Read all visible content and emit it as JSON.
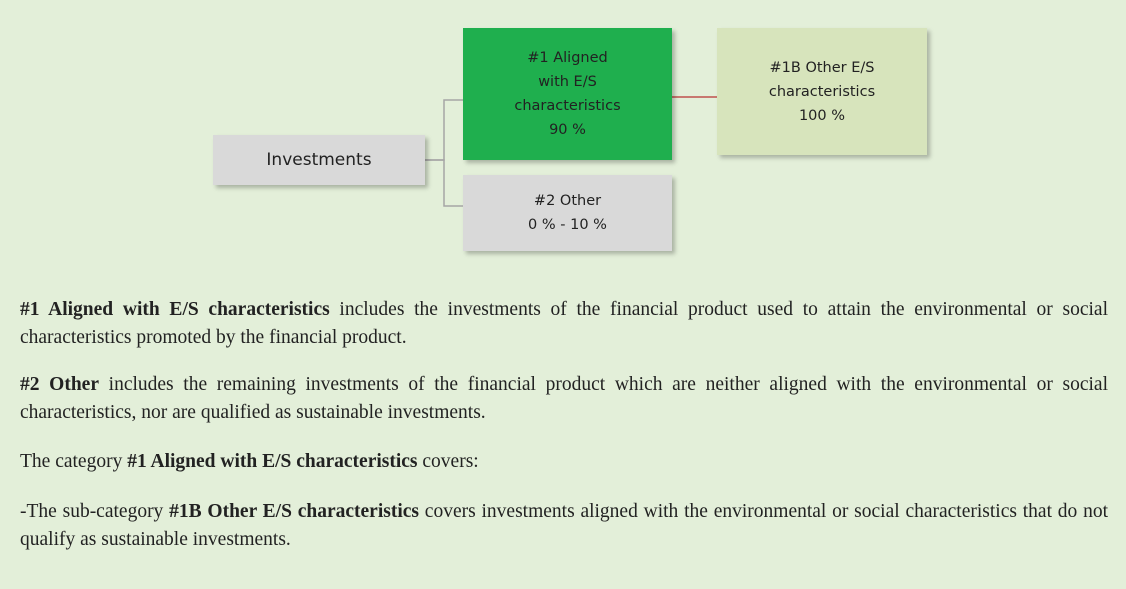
{
  "diagram": {
    "nodes": [
      {
        "lines": [
          "Investments"
        ]
      },
      {
        "lines": [
          "#1 Aligned",
          "with E/S",
          "characteristics",
          "90 %"
        ]
      },
      {
        "lines": [
          "#1B Other E/S",
          "characteristics",
          "100 %"
        ]
      },
      {
        "lines": [
          "#2 Other",
          "0 % - 10 %"
        ]
      }
    ]
  },
  "paragraphs": [
    [
      "#1 Aligned with E/S characteristics",
      " includes the investments of the financial product used to attain the environmental or social characteristics promoted by the financial product."
    ],
    [
      "#2 Other",
      " includes the remaining investments of the financial product which are neither aligned with the environmental or social characteristics, nor are qualified as sustainable investments."
    ],
    [
      "The category ",
      "#1 Aligned with E/S characteristics",
      " covers:"
    ],
    [
      "-The sub-category ",
      "#1B Other E/S characteristics",
      " covers investments aligned with the environmental or social characteristics that do not qualify as sustainable investments."
    ]
  ]
}
